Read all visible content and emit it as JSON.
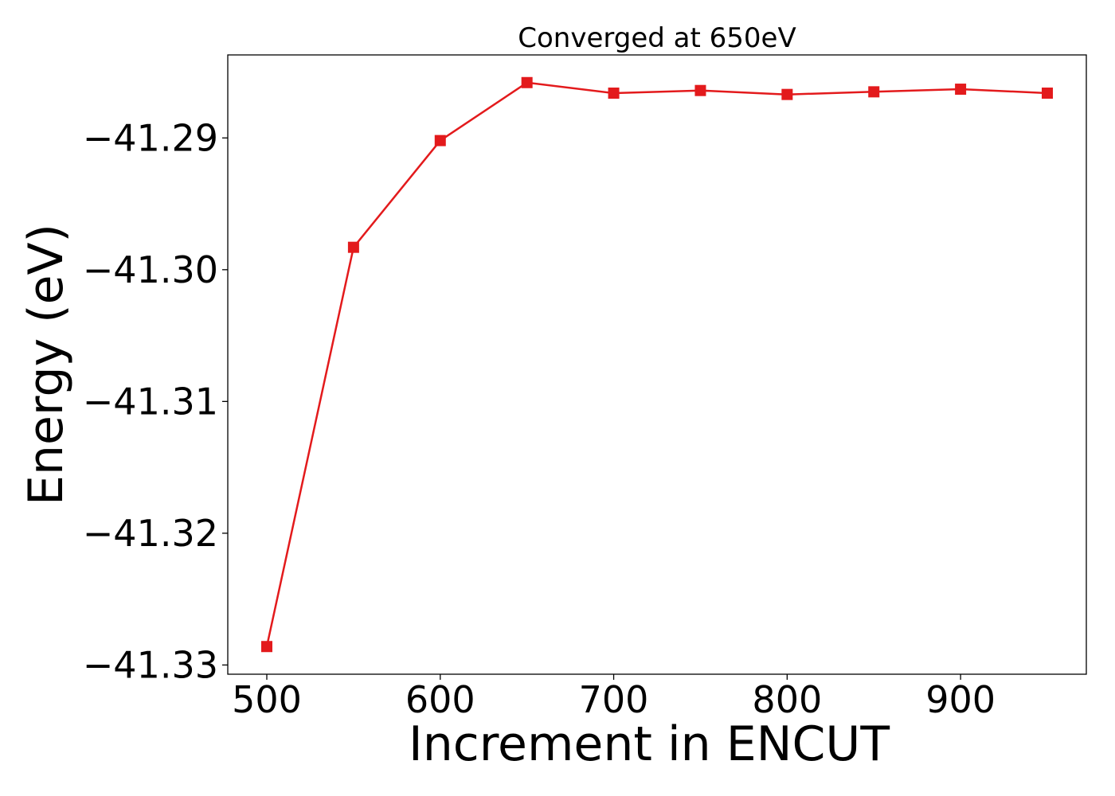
{
  "chart_data": {
    "type": "line",
    "title": "Converged at 650eV",
    "xlabel": "Increment in ENCUT",
    "ylabel": "Energy (eV)",
    "xlim": [
      477.5,
      972.5
    ],
    "ylim": [
      -41.3307,
      -41.2837
    ],
    "x_ticks": [
      500,
      600,
      700,
      800,
      900
    ],
    "x_tick_labels": [
      "500",
      "600",
      "700",
      "800",
      "900"
    ],
    "y_ticks": [
      -41.29,
      -41.3,
      -41.31,
      -41.32,
      -41.33
    ],
    "y_tick_labels": [
      "−41.29",
      "−41.30",
      "−41.31",
      "−41.32",
      "−41.33"
    ],
    "grid": false,
    "series": [
      {
        "color": "#e31a1c",
        "marker": "square",
        "x": [
          500,
          550,
          600,
          650,
          700,
          750,
          800,
          850,
          900,
          950
        ],
        "y": [
          -41.3286,
          -41.2983,
          -41.2902,
          -41.2858,
          -41.2866,
          -41.2864,
          -41.2867,
          -41.2865,
          -41.2863,
          -41.2866
        ]
      }
    ]
  }
}
